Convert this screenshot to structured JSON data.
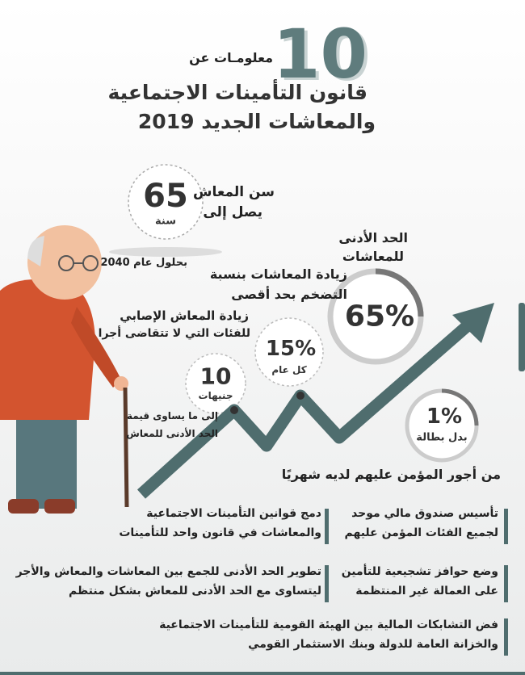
{
  "header": {
    "number": "10",
    "intro": "معلومـات عن",
    "title_line1": "قانون التأمينات الاجتماعية",
    "title_line2": "والمعاشات الجديد 2019"
  },
  "facts": [
    {
      "value": "65",
      "unit": "سنة",
      "lines": [
        "سن المعاش",
        "يصل إلى"
      ],
      "note": "بحلول عام 2040"
    },
    {
      "value": "65%",
      "lines": [
        "الحد الأدنى",
        "للمعاشات"
      ]
    },
    {
      "value": "15%",
      "unit": "كل عام",
      "lines": [
        "زيادة المعاشات بنسبة",
        "التضخم بحد أقصى"
      ]
    },
    {
      "value": "10",
      "unit": "جنيهات",
      "lines": [
        "زيادة المعاش الإصابي",
        "للفئات التي لا تتقاضى أجرا"
      ],
      "note_lines": [
        "إلى ما يساوى قيمة",
        "الحد الأدنى للمعاش"
      ]
    },
    {
      "value": "1%",
      "unit": "بدل بطالة",
      "note": "من أجور المؤمن عليهم لديه شهريًا"
    }
  ],
  "points": [
    [
      "دمج قوانين التأمينات الاجتماعية",
      "والمعاشات في قانون واحد للتأمينات"
    ],
    [
      "تأسيس صندوق مالي موحد",
      "لجميع الفئات المؤمن عليهم"
    ],
    [
      "تطوير الحد الأدنى للجمع بين المعاشات والمعاش والأجر",
      "ليتساوى مع الحد الأدنى للمعاش بشكل منتظم"
    ],
    [
      "وضع حوافز تشجيعية للتأمين",
      "على العمالة غير المنتظمة"
    ],
    [
      "فض التشابكات المالية بين الهيئة القومية للتأمينات الاجتماعية",
      "والخزانة العامة للدولة وبنك الاستثمار القومي"
    ]
  ]
}
